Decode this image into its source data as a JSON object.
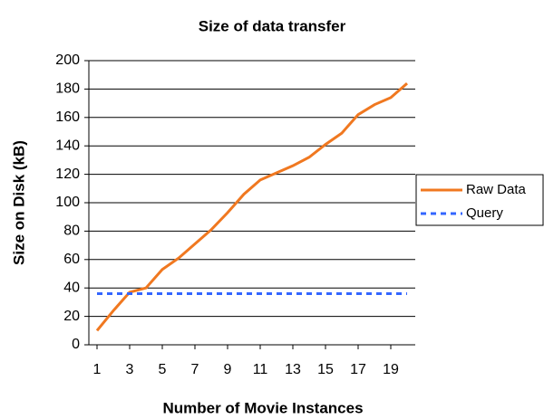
{
  "chart_data": {
    "type": "line",
    "title": "Size of data transfer",
    "xlabel": "Number of Movie Instances",
    "ylabel": "Size on Disk (kB)",
    "x": [
      1,
      2,
      3,
      4,
      5,
      6,
      7,
      8,
      9,
      10,
      11,
      12,
      13,
      14,
      15,
      16,
      17,
      18,
      19,
      20
    ],
    "series": [
      {
        "name": "Raw Data",
        "color": "#f07820",
        "dash": false,
        "values": [
          10,
          24,
          37,
          40,
          53,
          61,
          71,
          81,
          93,
          106,
          116,
          121,
          126,
          132,
          141,
          149,
          162,
          169,
          174,
          184
        ]
      },
      {
        "name": "Query",
        "color": "#3366ff",
        "dash": true,
        "values": [
          36,
          36,
          36,
          36,
          36,
          36,
          36,
          36,
          36,
          36,
          36,
          36,
          36,
          36,
          36,
          36,
          36,
          36,
          36,
          36
        ]
      }
    ],
    "xlim": [
      0.5,
      20.5
    ],
    "xticks": [
      1,
      3,
      5,
      7,
      9,
      11,
      13,
      15,
      17,
      19
    ],
    "ylim": [
      0,
      200
    ],
    "yticks": [
      0,
      20,
      40,
      60,
      80,
      100,
      120,
      140,
      160,
      180,
      200
    ],
    "grid": true,
    "legend": "right"
  }
}
